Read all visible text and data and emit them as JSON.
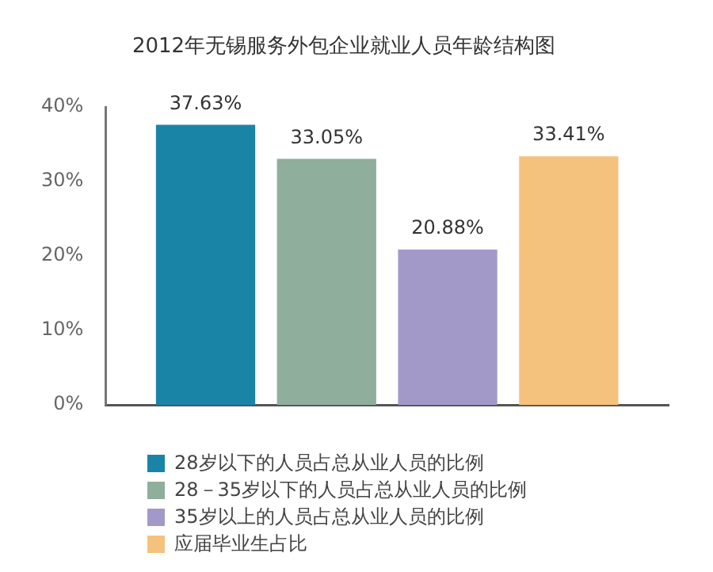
{
  "chart_data": {
    "type": "bar",
    "title": "2012年无锡服务外包企业就业人员年龄结构图",
    "categories": [
      null
    ],
    "series": [
      {
        "name": "28岁以下的人员占总从业人员的比例",
        "color": "#1a84a6",
        "values": [
          37.63
        ],
        "value_labels": [
          "37.63%"
        ]
      },
      {
        "name": "28－35岁以下的人员占总从业人员的比例",
        "color": "#8fae9c",
        "values": [
          33.05
        ],
        "value_labels": [
          "33.05%"
        ]
      },
      {
        "name": "35岁以上的人员占总从业人员的比例",
        "color": "#a399c9",
        "values": [
          20.88
        ],
        "value_labels": [
          "20.88%"
        ]
      },
      {
        "name": "应届毕业生占比",
        "color": "#f5c27e",
        "values": [
          33.41
        ],
        "value_labels": [
          "33.41%"
        ]
      }
    ],
    "ylim": [
      0,
      40
    ],
    "yticks": [
      {
        "value": 0,
        "label": "0%"
      },
      {
        "value": 10,
        "label": "10%"
      },
      {
        "value": 20,
        "label": "20%"
      },
      {
        "value": 30,
        "label": "30%"
      },
      {
        "value": 40,
        "label": "40%"
      }
    ],
    "grid": false,
    "legend": "bottom"
  }
}
